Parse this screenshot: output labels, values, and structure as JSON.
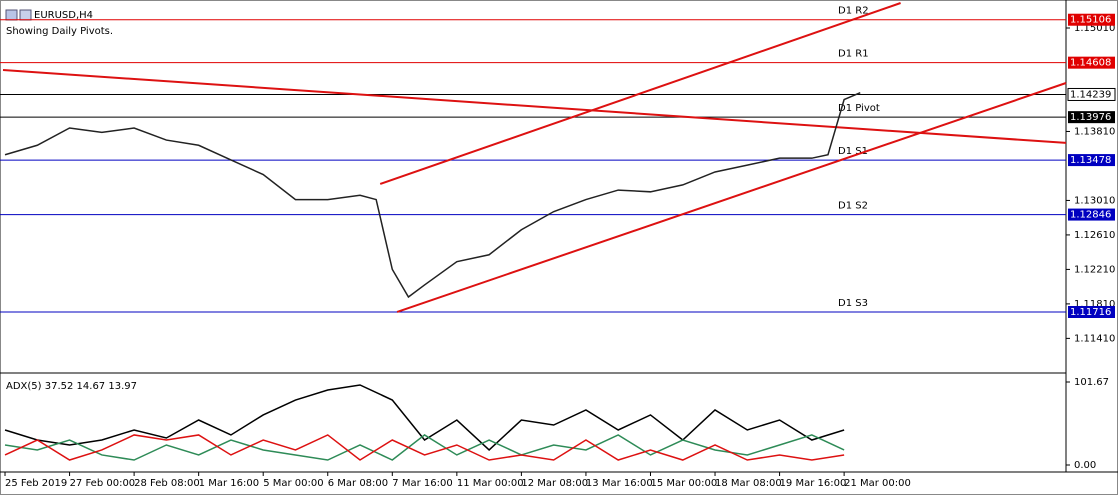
{
  "chart_data": [
    {
      "type": "line",
      "title": "EURUSD,H4",
      "subtitle": "Showing Daily Pivots.",
      "x": [
        0,
        4,
        8,
        12,
        16,
        20,
        24,
        28,
        32,
        36,
        40,
        44,
        46,
        48,
        50,
        52,
        56,
        60,
        64,
        68,
        72,
        76,
        80,
        84,
        88,
        92,
        96,
        100,
        102,
        104,
        106
      ],
      "series": [
        {
          "color": "#222222",
          "values": [
            1.1354,
            1.1365,
            1.1385,
            1.138,
            1.1385,
            1.1371,
            1.1365,
            1.1348,
            1.1331,
            1.1302,
            1.1302,
            1.1307,
            1.1302,
            1.1221,
            1.1189,
            1.1203,
            1.123,
            1.1238,
            1.1267,
            1.1288,
            1.1302,
            1.1313,
            1.1311,
            1.1319,
            1.1334,
            1.1342,
            1.135,
            1.135,
            1.1354,
            1.1418,
            1.1426
          ]
        }
      ],
      "xlim": [
        -0.25,
        131.5
      ],
      "xticks": [
        {
          "value": 0,
          "label": "25 Feb 2019"
        },
        {
          "value": 8,
          "label": "27 Feb 00:00"
        },
        {
          "value": 16,
          "label": "28 Feb 08:00"
        },
        {
          "value": 24,
          "label": "1 Mar 16:00"
        },
        {
          "value": 32,
          "label": "5 Mar 00:00"
        },
        {
          "value": 40,
          "label": "6 Mar 08:00"
        },
        {
          "value": 48,
          "label": "7 Mar 16:00"
        },
        {
          "value": 56,
          "label": "11 Mar 00:00"
        },
        {
          "value": 64,
          "label": "12 Mar 08:00"
        },
        {
          "value": 72,
          "label": "13 Mar 16:00"
        },
        {
          "value": 80,
          "label": "15 Mar 00:00"
        },
        {
          "value": 88,
          "label": "18 Mar 08:00"
        },
        {
          "value": 96,
          "label": "19 Mar 16:00"
        },
        {
          "value": 104,
          "label": "21 Mar 00:00"
        }
      ],
      "ylim": [
        1.1102,
        1.153
      ],
      "yticks": [
        {
          "value": 1.1141,
          "label": "1.11410"
        },
        {
          "value": 1.1181,
          "label": "1.11810"
        },
        {
          "value": 1.1221,
          "label": "1.12210"
        },
        {
          "value": 1.1261,
          "label": "1.12610"
        },
        {
          "value": 1.1301,
          "label": "1.13010"
        },
        {
          "value": 1.1381,
          "label": "1.13810"
        },
        {
          "value": 1.1501,
          "label": "1.15010"
        }
      ],
      "levels": [
        {
          "name": "D1 R2",
          "value": 1.15106,
          "color": "#e00000"
        },
        {
          "name": "D1 R1",
          "value": 1.14608,
          "color": "#e00000"
        },
        {
          "name": "D1 Pivot",
          "value": 1.13976,
          "color": "#000000"
        },
        {
          "name": "D1 S1",
          "value": 1.13478,
          "color": "#0000c0"
        },
        {
          "name": "D1 S2",
          "value": 1.12846,
          "color": "#0000c0"
        },
        {
          "name": "D1 S3",
          "value": 1.11716,
          "color": "#0000c0"
        }
      ],
      "last_price": 1.14239,
      "trendlines": [
        {
          "color": "#dd1111",
          "x": [
            -0.25,
            131.5
          ],
          "y": [
            1.14523,
            1.13677
          ]
        },
        {
          "color": "#dd1111",
          "x": [
            46.5,
            111
          ],
          "y": [
            1.13201,
            1.153
          ]
        },
        {
          "color": "#dd1111",
          "x": [
            48.6,
            131.5
          ],
          "y": [
            1.11717,
            1.14372
          ]
        }
      ]
    },
    {
      "type": "line",
      "title": "ADX(5) 37.52 14.67 13.97",
      "x": [
        0,
        4,
        8,
        12,
        16,
        20,
        24,
        28,
        32,
        36,
        40,
        44,
        48,
        52,
        56,
        60,
        64,
        68,
        72,
        76,
        80,
        84,
        88,
        92,
        96,
        100,
        104
      ],
      "series": [
        {
          "color": "#000000",
          "values": [
            42.9,
            30.6,
            24.5,
            30.6,
            42.9,
            33.1,
            55.1,
            36.8,
            61.3,
            79.6,
            91.9,
            98.0,
            79.6,
            30.6,
            55.1,
            18.4,
            55.1,
            49.0,
            67.4,
            42.9,
            61.3,
            30.6,
            67.4,
            42.9,
            55.1,
            30.6,
            42.9
          ]
        },
        {
          "color": "#2e8b57",
          "values": [
            24.5,
            18.4,
            30.6,
            12.3,
            6.1,
            24.5,
            12.3,
            30.6,
            18.4,
            12.3,
            6.1,
            24.5,
            6.1,
            36.8,
            12.3,
            30.6,
            12.3,
            24.5,
            18.4,
            36.8,
            12.3,
            30.6,
            18.4,
            12.3,
            24.5,
            36.8,
            18.4
          ]
        },
        {
          "color": "#dd1111",
          "values": [
            12.3,
            30.6,
            6.1,
            18.4,
            36.8,
            30.6,
            36.8,
            12.3,
            30.6,
            18.4,
            36.8,
            6.1,
            30.6,
            12.3,
            24.5,
            6.1,
            12.3,
            6.1,
            30.6,
            6.1,
            18.4,
            6.1,
            24.5,
            6.1,
            12.3,
            6.1,
            12.3
          ]
        }
      ],
      "xlim": [
        -0.25,
        131.5
      ],
      "ylim": [
        0,
        101.67
      ],
      "yticks": [
        {
          "value": 0,
          "label": "0.00"
        },
        101.67
      ]
    }
  ]
}
